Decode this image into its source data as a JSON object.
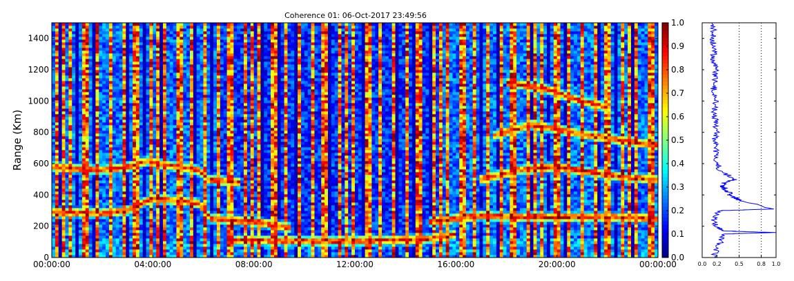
{
  "chart_data": [
    {
      "type": "heatmap",
      "title": "Coherence 01: 06-Oct-2017 23:49:56",
      "xlabel": "",
      "ylabel": "Range (Km)",
      "x_tick_labels": [
        "00:00:00",
        "04:00:00",
        "08:00:00",
        "12:00:00",
        "16:00:00",
        "20:00:00",
        "00:00:00"
      ],
      "x_tick_hours": [
        0,
        4,
        8,
        12,
        16,
        20,
        24
      ],
      "xlim_hours": [
        0,
        24
      ],
      "y_ticks": [
        0,
        200,
        400,
        600,
        800,
        1000,
        1200,
        1400
      ],
      "ylim": [
        0,
        1500
      ],
      "colormap": "jet",
      "colorbar": {
        "ticks": [
          "0.0",
          "0.1",
          "0.2",
          "0.3",
          "0.4",
          "0.5",
          "0.6",
          "0.7",
          "0.8",
          "0.9",
          "1.0"
        ],
        "range": [
          0.0,
          1.0
        ]
      },
      "features": [
        {
          "label": "",
          "points": [
            [
              0,
              580
            ],
            [
              1,
              570
            ],
            [
              2,
              560
            ],
            [
              3,
              580
            ],
            [
              3.8,
              620
            ],
            [
              4.2,
              600
            ],
            [
              5.8,
              560
            ],
            [
              6.2,
              500
            ],
            [
              7.5,
              480
            ]
          ]
        },
        {
          "label": "",
          "points": [
            [
              0,
              290
            ],
            [
              2,
              285
            ],
            [
              3,
              300
            ],
            [
              3.6,
              350
            ],
            [
              4,
              380
            ],
            [
              5.8,
              350
            ],
            [
              6.3,
              250
            ],
            [
              8,
              230
            ],
            [
              9.5,
              190
            ]
          ]
        },
        {
          "label": "",
          "points": [
            [
              7,
              110
            ],
            [
              9,
              110
            ],
            [
              11,
              105
            ],
            [
              13,
              110
            ],
            [
              15,
              120
            ],
            [
              16,
              150
            ]
          ]
        },
        {
          "label": "",
          "points": [
            [
              15,
              230
            ],
            [
              16,
              250
            ],
            [
              17,
              270
            ],
            [
              18,
              260
            ],
            [
              20,
              260
            ],
            [
              22,
              260
            ],
            [
              24,
              250
            ]
          ]
        },
        {
          "label": "",
          "points": [
            [
              17,
              500
            ],
            [
              18.5,
              560
            ],
            [
              20,
              580
            ],
            [
              22,
              530
            ],
            [
              23,
              510
            ],
            [
              24,
              500
            ]
          ]
        },
        {
          "label": "",
          "points": [
            [
              17.5,
              780
            ],
            [
              19,
              850
            ],
            [
              21,
              790
            ],
            [
              23,
              740
            ],
            [
              24,
              720
            ]
          ]
        },
        {
          "label": "",
          "points": [
            [
              18,
              1120
            ],
            [
              19.5,
              1080
            ],
            [
              21,
              1000
            ],
            [
              22,
              960
            ]
          ]
        }
      ]
    },
    {
      "type": "line",
      "xlabel": "",
      "ylabel": "",
      "x_ticks": [
        "0.0",
        "0.2",
        "0.5",
        "0.8",
        "1.0"
      ],
      "xlim": [
        0.0,
        1.0
      ],
      "ylim": [
        0,
        1500
      ],
      "grid_x": [
        0.5,
        0.8
      ],
      "series": [
        {
          "color": "#0000ff",
          "y": [
            0,
            50,
            100,
            150,
            155,
            160,
            165,
            170,
            200,
            250,
            300,
            305,
            310,
            320,
            330,
            340,
            350,
            360,
            380,
            400,
            420,
            440,
            460,
            480,
            500,
            550,
            600,
            650,
            700,
            750,
            800,
            850,
            900,
            950,
            1000,
            1050,
            1100,
            1150,
            1200,
            1250,
            1300,
            1350,
            1400,
            1450,
            1500
          ],
          "x": [
            0.15,
            0.2,
            0.25,
            0.3,
            0.6,
            1.0,
            0.6,
            0.3,
            0.2,
            0.15,
            0.25,
            0.6,
            0.97,
            0.85,
            0.8,
            0.75,
            0.62,
            0.55,
            0.45,
            0.38,
            0.35,
            0.3,
            0.28,
            0.3,
            0.45,
            0.25,
            0.2,
            0.18,
            0.2,
            0.15,
            0.2,
            0.18,
            0.17,
            0.16,
            0.18,
            0.15,
            0.16,
            0.17,
            0.2,
            0.15,
            0.16,
            0.15,
            0.14,
            0.15,
            0.13
          ]
        }
      ]
    }
  ]
}
